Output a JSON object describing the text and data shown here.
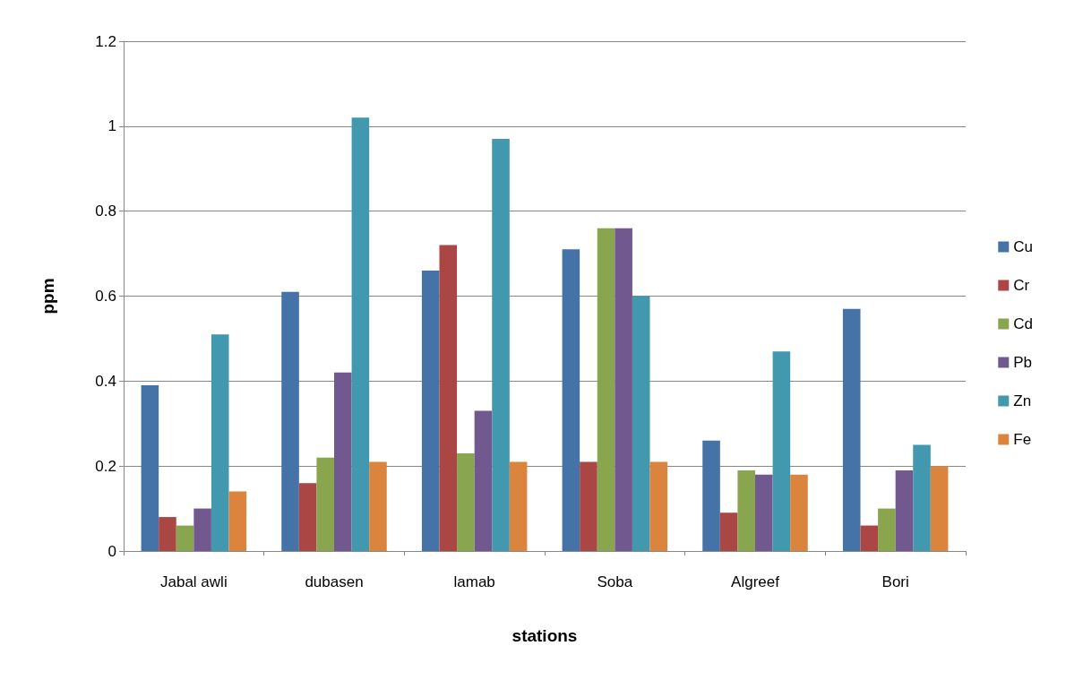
{
  "chart_data": {
    "type": "bar",
    "xlabel": "stations",
    "ylabel": "ppm",
    "categories": [
      "Jabal awli",
      "dubasen",
      "lamab",
      "Soba",
      "Algreef",
      "Bori"
    ],
    "series": [
      {
        "name": "Cu",
        "color": "#4572a7",
        "values": [
          0.39,
          0.61,
          0.66,
          0.71,
          0.26,
          0.57
        ]
      },
      {
        "name": "Cr",
        "color": "#aa4643",
        "values": [
          0.08,
          0.16,
          0.72,
          0.21,
          0.09,
          0.06
        ]
      },
      {
        "name": "Cd",
        "color": "#89a54e",
        "values": [
          0.06,
          0.22,
          0.23,
          0.76,
          0.19,
          0.1
        ]
      },
      {
        "name": "Pb",
        "color": "#71588f",
        "values": [
          0.1,
          0.42,
          0.33,
          0.76,
          0.18,
          0.19
        ]
      },
      {
        "name": "Zn",
        "color": "#4198af",
        "values": [
          0.51,
          1.02,
          0.97,
          0.6,
          0.47,
          0.25
        ]
      },
      {
        "name": "Fe",
        "color": "#db843d",
        "values": [
          0.14,
          0.21,
          0.21,
          0.21,
          0.18,
          0.2
        ]
      }
    ],
    "ylim": [
      0,
      1.2
    ],
    "yticks": [
      0,
      0.2,
      0.4,
      0.6,
      0.8,
      1,
      1.2
    ],
    "grid": "y",
    "legend": "right"
  }
}
